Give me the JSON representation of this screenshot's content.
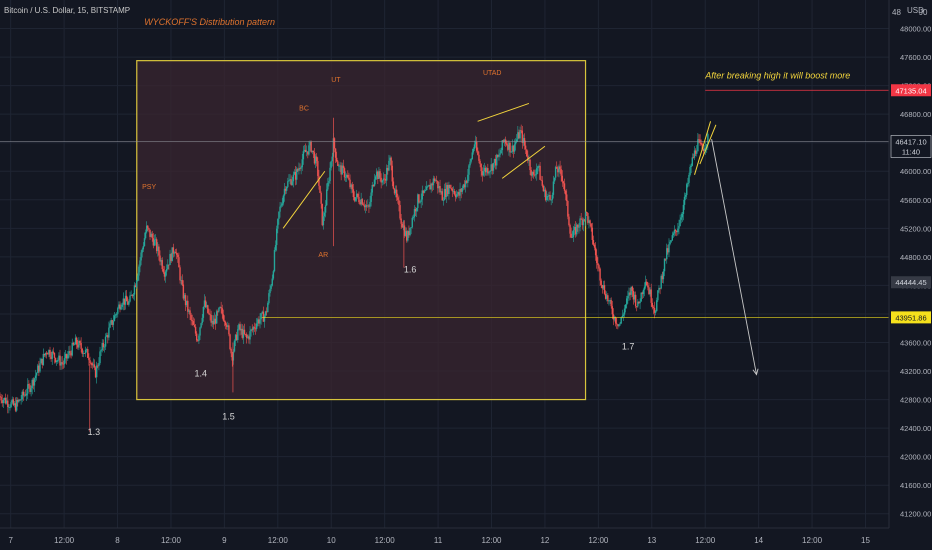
{
  "header": {
    "title": "Bitcoin / U.S. Dollar, 15, BITSTAMP",
    "currency": "USD",
    "top_right_fragment": "48",
    "top_right_fragment2": "J0"
  },
  "colors": {
    "background": "#131722",
    "grid": "#1f2533",
    "up": "#26a69a",
    "down": "#ef5350",
    "box_fill": "#3a2630",
    "box_border": "#d8c43c",
    "annotation": "#e0732e",
    "yellow_text": "#f2d43c",
    "white_label": "#d6d6d6",
    "axis_text": "#b2b5be",
    "red_tag": "#f23645",
    "yellow_tag": "#f5e11c"
  },
  "chart_data": {
    "type": "candlestick",
    "title": "Bitcoin / U.S. Dollar, 15, BITSTAMP",
    "ylim": [
      41000,
      48400
    ],
    "y_ticks": [
      41200,
      41600,
      42000,
      42400,
      42800,
      43200,
      43600,
      44000,
      44400,
      44800,
      45200,
      45600,
      46000,
      46400,
      46800,
      47200,
      47600,
      48000
    ],
    "y_tick_labels": [
      "41200.00",
      "41600.00",
      "42000.00",
      "42400.00",
      "42800.00",
      "43200.00",
      "43600.00",
      "44000.00",
      "44400.00",
      "44800.00",
      "45200.00",
      "45600.00",
      "46000.00",
      "46400.00",
      "46800.00",
      "47200.00",
      "47600.00",
      "48000.00"
    ],
    "x_ticks": [
      {
        "label": "7",
        "pos": 0.0
      },
      {
        "label": "12:00",
        "pos": 0.5
      },
      {
        "label": "8",
        "pos": 1.0
      },
      {
        "label": "12:00",
        "pos": 1.5
      },
      {
        "label": "9",
        "pos": 2.0
      },
      {
        "label": "12:00",
        "pos": 2.5
      },
      {
        "label": "10",
        "pos": 3.0
      },
      {
        "label": "12:00",
        "pos": 3.5
      },
      {
        "label": "11",
        "pos": 4.0
      },
      {
        "label": "12:00",
        "pos": 4.5
      },
      {
        "label": "12",
        "pos": 5.0
      },
      {
        "label": "12:00",
        "pos": 5.5
      },
      {
        "label": "13",
        "pos": 6.0
      },
      {
        "label": "12:00",
        "pos": 6.5
      },
      {
        "label": "14",
        "pos": 7.0
      },
      {
        "label": "12:00",
        "pos": 7.5
      },
      {
        "label": "15",
        "pos": 8.0
      }
    ],
    "x_range_days": [
      -0.1,
      8.22
    ],
    "price_path": [
      [
        -0.1,
        42850
      ],
      [
        0.05,
        42700
      ],
      [
        0.2,
        43000
      ],
      [
        0.35,
        43500
      ],
      [
        0.5,
        43300
      ],
      [
        0.62,
        43600
      ],
      [
        0.75,
        43400
      ],
      [
        0.8,
        43150
      ],
      [
        0.85,
        43450
      ],
      [
        0.95,
        43850
      ],
      [
        1.05,
        44200
      ],
      [
        1.12,
        44150
      ],
      [
        1.18,
        44450
      ],
      [
        1.28,
        45200
      ],
      [
        1.36,
        45000
      ],
      [
        1.45,
        44600
      ],
      [
        1.55,
        44950
      ],
      [
        1.62,
        44300
      ],
      [
        1.7,
        43900
      ],
      [
        1.76,
        43650
      ],
      [
        1.82,
        44150
      ],
      [
        1.9,
        43850
      ],
      [
        1.97,
        44050
      ],
      [
        2.03,
        43900
      ],
      [
        2.08,
        43400
      ],
      [
        2.14,
        43800
      ],
      [
        2.22,
        43650
      ],
      [
        2.32,
        43900
      ],
      [
        2.4,
        44000
      ],
      [
        2.46,
        44550
      ],
      [
        2.52,
        45400
      ],
      [
        2.58,
        45800
      ],
      [
        2.68,
        45950
      ],
      [
        2.76,
        46250
      ],
      [
        2.82,
        46350
      ],
      [
        2.88,
        46050
      ],
      [
        2.93,
        45250
      ],
      [
        2.97,
        45700
      ],
      [
        3.03,
        46400
      ],
      [
        3.08,
        46050
      ],
      [
        3.15,
        45950
      ],
      [
        3.22,
        45650
      ],
      [
        3.3,
        45600
      ],
      [
        3.36,
        45450
      ],
      [
        3.42,
        46000
      ],
      [
        3.5,
        45850
      ],
      [
        3.56,
        46150
      ],
      [
        3.6,
        45750
      ],
      [
        3.66,
        45350
      ],
      [
        3.72,
        45050
      ],
      [
        3.76,
        45300
      ],
      [
        3.82,
        45600
      ],
      [
        3.9,
        45700
      ],
      [
        3.98,
        45900
      ],
      [
        4.05,
        45650
      ],
      [
        4.12,
        45800
      ],
      [
        4.2,
        45650
      ],
      [
        4.28,
        45900
      ],
      [
        4.35,
        46400
      ],
      [
        4.42,
        46000
      ],
      [
        4.5,
        46050
      ],
      [
        4.58,
        46200
      ],
      [
        4.63,
        46450
      ],
      [
        4.7,
        46300
      ],
      [
        4.78,
        46550
      ],
      [
        4.85,
        46200
      ],
      [
        4.9,
        45900
      ],
      [
        4.94,
        46100
      ],
      [
        5.0,
        45700
      ],
      [
        5.06,
        45600
      ],
      [
        5.12,
        46050
      ],
      [
        5.18,
        45900
      ],
      [
        5.22,
        45450
      ],
      [
        5.26,
        45050
      ],
      [
        5.32,
        45250
      ],
      [
        5.4,
        45400
      ],
      [
        5.45,
        45100
      ],
      [
        5.5,
        44700
      ],
      [
        5.55,
        44400
      ],
      [
        5.6,
        44200
      ],
      [
        5.66,
        43950
      ],
      [
        5.71,
        43850
      ],
      [
        5.76,
        44100
      ],
      [
        5.82,
        44350
      ],
      [
        5.88,
        44100
      ],
      [
        5.95,
        44500
      ],
      [
        6.0,
        44250
      ],
      [
        6.04,
        44050
      ],
      [
        6.08,
        44350
      ],
      [
        6.14,
        44800
      ],
      [
        6.2,
        45050
      ],
      [
        6.26,
        45250
      ],
      [
        6.32,
        45600
      ],
      [
        6.38,
        46100
      ],
      [
        6.44,
        46400
      ],
      [
        6.48,
        46300
      ],
      [
        6.53,
        46450
      ]
    ],
    "current_price": 46417.1,
    "current_price_label": "46417.10",
    "countdown": "11:40",
    "levels": [
      {
        "label": "47135.04",
        "value": 47135.04,
        "color": "#f23645"
      },
      {
        "label": "44444.45",
        "value": 44444.45,
        "color": "#363a45"
      },
      {
        "label": "43951.86",
        "value": 43951.86,
        "color": "#f5e11c"
      }
    ],
    "distribution_box": {
      "x0": 1.18,
      "x1": 5.38,
      "y0": 42800,
      "y1": 47550
    },
    "annotations": [
      {
        "text": "WYCKOFF'S Distribution pattern",
        "x": 1.25,
        "y": 48050,
        "color": "#e0732e",
        "size": 9
      },
      {
        "text": "PSY",
        "x": 1.23,
        "y": 45750,
        "color": "#e0732e",
        "size": 7
      },
      {
        "text": "BC",
        "x": 2.7,
        "y": 46850,
        "color": "#e0732e",
        "size": 7
      },
      {
        "text": "UT",
        "x": 3.0,
        "y": 47250,
        "color": "#e0732e",
        "size": 7
      },
      {
        "text": "AR",
        "x": 2.88,
        "y": 44800,
        "color": "#e0732e",
        "size": 7
      },
      {
        "text": "UTAD",
        "x": 4.42,
        "y": 47350,
        "color": "#e0732e",
        "size": 7
      },
      {
        "text": "1.3",
        "x": 0.72,
        "y": 42300,
        "color": "#d6d6d6",
        "size": 9
      },
      {
        "text": "1.4",
        "x": 1.72,
        "y": 43120,
        "color": "#d6d6d6",
        "size": 9
      },
      {
        "text": "1.5",
        "x": 1.98,
        "y": 42520,
        "color": "#d6d6d6",
        "size": 9
      },
      {
        "text": "1.6",
        "x": 3.68,
        "y": 44580,
        "color": "#d6d6d6",
        "size": 9
      },
      {
        "text": "1.7",
        "x": 5.72,
        "y": 43500,
        "color": "#d6d6d6",
        "size": 9
      },
      {
        "text": "After breaking high it will boost more",
        "x": 6.5,
        "y": 47300,
        "color": "#f2d43c",
        "size": 9
      }
    ],
    "trendlines": [
      {
        "from": [
          2.55,
          45200
        ],
        "to": [
          2.94,
          46000
        ],
        "color": "#f2d43c"
      },
      {
        "from": [
          4.37,
          46700
        ],
        "to": [
          4.85,
          46950
        ],
        "color": "#f2d43c"
      },
      {
        "from": [
          4.6,
          45900
        ],
        "to": [
          5.0,
          46350
        ],
        "color": "#f2d43c"
      },
      {
        "from": [
          6.4,
          45950
        ],
        "to": [
          6.55,
          46700
        ],
        "color": "#f2d43c"
      },
      {
        "from": [
          6.45,
          46100
        ],
        "to": [
          6.6,
          46650
        ],
        "color": "#f2d43c"
      }
    ],
    "projection_arrow": {
      "from": [
        6.56,
        46450
      ],
      "to": [
        6.98,
        43150
      ],
      "color": "#c8c8c8"
    }
  }
}
